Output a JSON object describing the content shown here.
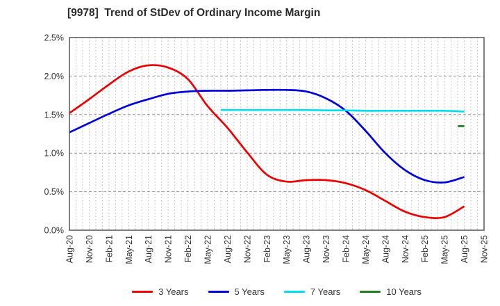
{
  "chart_data": {
    "type": "line",
    "title": "[9978]  Trend of StDev of Ordinary Income Margin",
    "xlabel": "",
    "ylabel": "",
    "ylim": [
      0.0,
      2.5
    ],
    "y_tick_labels": [
      "0.0%",
      "0.5%",
      "1.0%",
      "1.5%",
      "2.0%",
      "2.5%"
    ],
    "y_tick_values": [
      0.0,
      0.5,
      1.0,
      1.5,
      2.0,
      2.5
    ],
    "x_tick_labels": [
      "Aug-20",
      "Nov-20",
      "Feb-21",
      "May-21",
      "Aug-21",
      "Nov-21",
      "Feb-22",
      "May-22",
      "Aug-22",
      "Nov-22",
      "Feb-23",
      "May-23",
      "Aug-23",
      "Nov-23",
      "Feb-24",
      "May-24",
      "Aug-24",
      "Nov-24",
      "Feb-25",
      "May-25",
      "Aug-25",
      "Nov-25"
    ],
    "months_per_tick": 3,
    "x_month_span": 63,
    "grid": {
      "on": true,
      "minor_vertical": "monthly",
      "h_color": "#999999",
      "v_color": "#b5b5b5",
      "frame_color": "#555555"
    },
    "legend_position": "bottom",
    "series": [
      {
        "name": "3 Years",
        "color": "#ee0000",
        "unit": "%",
        "points": [
          [
            0,
            1.52
          ],
          [
            3,
            1.7
          ],
          [
            6,
            1.89
          ],
          [
            9,
            2.06
          ],
          [
            12,
            2.14
          ],
          [
            15,
            2.11
          ],
          [
            18,
            1.96
          ],
          [
            21,
            1.61
          ],
          [
            24,
            1.33
          ],
          [
            27,
            1.01
          ],
          [
            30,
            0.72
          ],
          [
            33,
            0.63
          ],
          [
            36,
            0.65
          ],
          [
            39,
            0.65
          ],
          [
            42,
            0.61
          ],
          [
            45,
            0.52
          ],
          [
            48,
            0.38
          ],
          [
            51,
            0.24
          ],
          [
            54,
            0.17
          ],
          [
            57,
            0.17
          ],
          [
            60,
            0.31
          ]
        ]
      },
      {
        "name": "5 Years",
        "color": "#0000dd",
        "unit": "%",
        "points": [
          [
            0,
            1.27
          ],
          [
            3,
            1.39
          ],
          [
            6,
            1.51
          ],
          [
            9,
            1.62
          ],
          [
            12,
            1.7
          ],
          [
            15,
            1.77
          ],
          [
            18,
            1.8
          ],
          [
            21,
            1.81
          ],
          [
            24,
            1.81
          ],
          [
            27,
            1.815
          ],
          [
            30,
            1.82
          ],
          [
            33,
            1.82
          ],
          [
            36,
            1.8
          ],
          [
            39,
            1.71
          ],
          [
            42,
            1.55
          ],
          [
            45,
            1.29
          ],
          [
            48,
            1.0
          ],
          [
            51,
            0.78
          ],
          [
            54,
            0.65
          ],
          [
            57,
            0.62
          ],
          [
            60,
            0.69
          ]
        ]
      },
      {
        "name": "7 Years",
        "color": "#00dfee",
        "unit": "%",
        "points": [
          [
            23,
            1.56
          ],
          [
            24,
            1.56
          ],
          [
            27,
            1.56
          ],
          [
            30,
            1.56
          ],
          [
            33,
            1.56
          ],
          [
            36,
            1.56
          ],
          [
            39,
            1.555
          ],
          [
            42,
            1.555
          ],
          [
            45,
            1.55
          ],
          [
            48,
            1.55
          ],
          [
            51,
            1.55
          ],
          [
            54,
            1.55
          ],
          [
            57,
            1.55
          ],
          [
            60,
            1.54
          ]
        ]
      },
      {
        "name": "10 Years",
        "color": "#1e7e1e",
        "unit": "%",
        "points": [
          [
            59,
            1.35
          ],
          [
            60,
            1.35
          ]
        ]
      }
    ]
  },
  "text_colors": {
    "title": "#2b2b2b",
    "tick_labels": "#333333"
  }
}
